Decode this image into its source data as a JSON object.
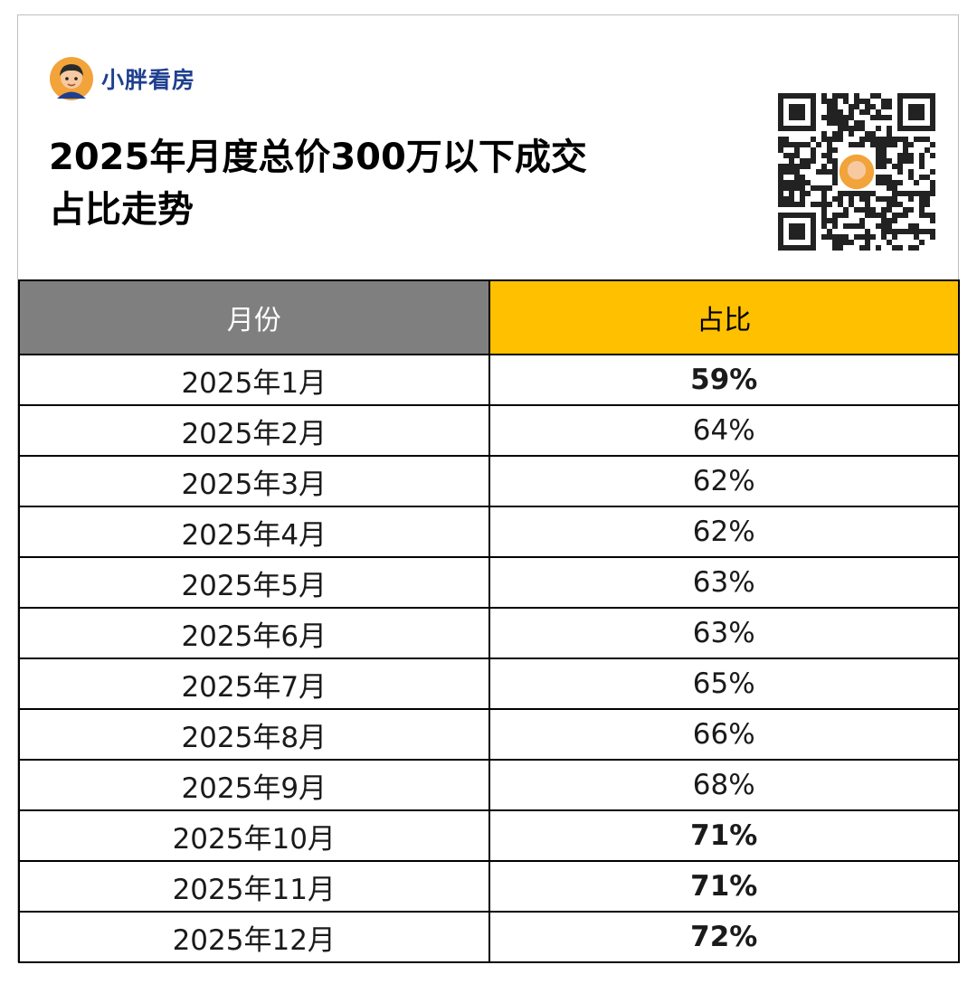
{
  "brand": {
    "name": "小胖看房",
    "avatar_icon": "cartoon-avatar-icon"
  },
  "title": {
    "line1": "2025年月度总价300万以下成交",
    "line2": "占比走势"
  },
  "qr": {
    "icon": "qr-code-icon"
  },
  "colors": {
    "header_month_bg": "#7f7f7f",
    "header_share_bg": "#ffc000",
    "highlight": "#e00000",
    "brand": "#1f3f8f"
  },
  "table": {
    "headers": {
      "month": "月份",
      "share": "占比"
    },
    "rows": [
      {
        "month": "2025年1月",
        "share": "59%",
        "highlight": true
      },
      {
        "month": "2025年2月",
        "share": "64%",
        "highlight": false
      },
      {
        "month": "2025年3月",
        "share": "62%",
        "highlight": false
      },
      {
        "month": "2025年4月",
        "share": "62%",
        "highlight": false
      },
      {
        "month": "2025年5月",
        "share": "63%",
        "highlight": false
      },
      {
        "month": "2025年6月",
        "share": "63%",
        "highlight": false
      },
      {
        "month": "2025年7月",
        "share": "65%",
        "highlight": false
      },
      {
        "month": "2025年8月",
        "share": "66%",
        "highlight": false
      },
      {
        "month": "2025年9月",
        "share": "68%",
        "highlight": false
      },
      {
        "month": "2025年10月",
        "share": "71%",
        "highlight": true
      },
      {
        "month": "2025年11月",
        "share": "71%",
        "highlight": true
      },
      {
        "month": "2025年12月",
        "share": "72%",
        "highlight": true
      }
    ]
  }
}
